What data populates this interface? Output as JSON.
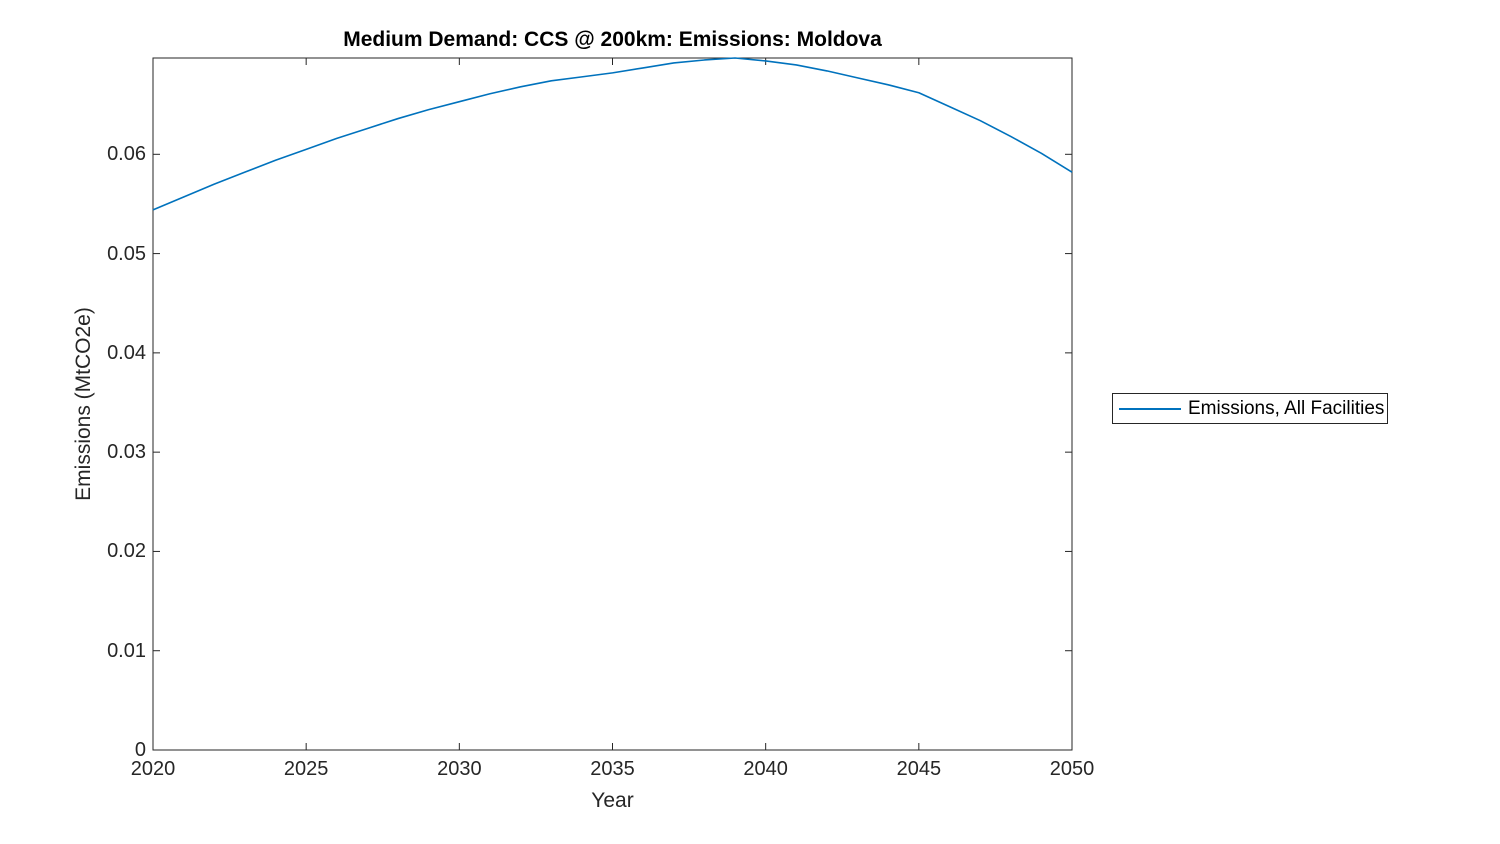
{
  "figure": {
    "background": "#ffffff",
    "axis_color": "#262626",
    "title_color": "#000000"
  },
  "chart_data": {
    "type": "line",
    "title": "Medium Demand: CCS @ 200km: Emissions: Moldova",
    "xlabel": "Year",
    "ylabel": "Emissions (MtCO2e)",
    "xlim": [
      2020,
      2050
    ],
    "ylim": [
      0,
      0.0697
    ],
    "grid": false,
    "xticks": {
      "values": [
        2020,
        2025,
        2030,
        2035,
        2040,
        2045,
        2050
      ],
      "labels": [
        "2020",
        "2025",
        "2030",
        "2035",
        "2040",
        "2045",
        "2050"
      ]
    },
    "yticks": {
      "values": [
        0,
        0.01,
        0.02,
        0.03,
        0.04,
        0.05,
        0.06
      ],
      "labels": [
        "0",
        "0.01",
        "0.02",
        "0.03",
        "0.04",
        "0.05",
        "0.06"
      ]
    },
    "legend": {
      "position": "outside-right",
      "border": true,
      "entries": [
        {
          "label": "Emissions, All Facilities",
          "color": "#0072BD"
        }
      ]
    },
    "series": [
      {
        "name": "Emissions, All Facilities",
        "color": "#0072BD",
        "x": [
          2020,
          2021,
          2022,
          2023,
          2024,
          2025,
          2026,
          2027,
          2028,
          2029,
          2030,
          2031,
          2032,
          2033,
          2034,
          2035,
          2036,
          2037,
          2038,
          2039,
          2040,
          2041,
          2042,
          2043,
          2044,
          2045,
          2046,
          2047,
          2048,
          2049,
          2050
        ],
        "y": [
          0.0544,
          0.0557,
          0.057,
          0.0582,
          0.0594,
          0.0605,
          0.0616,
          0.0626,
          0.0636,
          0.0645,
          0.0653,
          0.0661,
          0.0668,
          0.0674,
          0.0678,
          0.0682,
          0.0687,
          0.0692,
          0.0695,
          0.0697,
          0.0694,
          0.069,
          0.0684,
          0.0677,
          0.067,
          0.0662,
          0.0648,
          0.0634,
          0.0618,
          0.0601,
          0.0582
        ]
      }
    ]
  }
}
